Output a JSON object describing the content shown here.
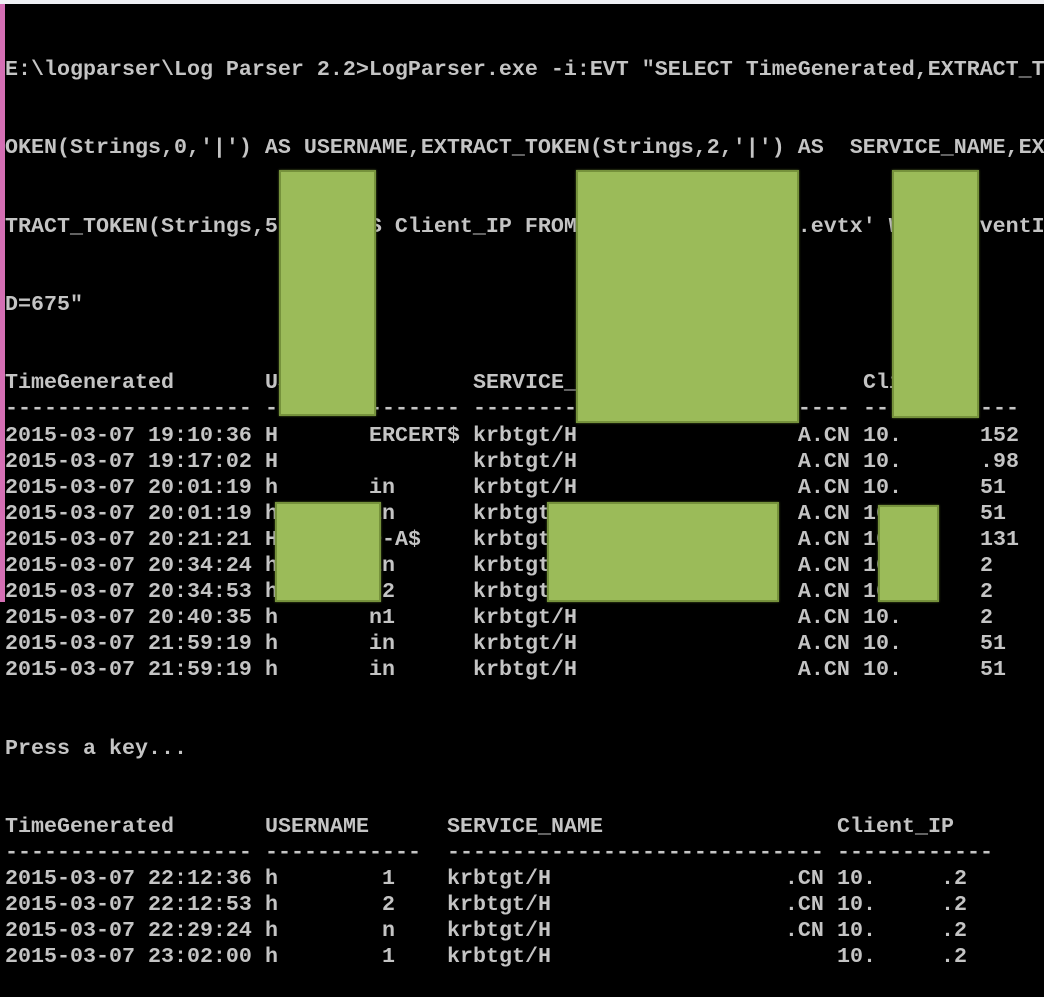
{
  "command": {
    "lines": [
      "E:\\logparser\\Log Parser 2.2>LogParser.exe -i:EVT \"SELECT TimeGenerated,EXTRACT_T",
      "OKEN(Strings,0,'|') AS USERNAME,EXTRACT_TOKEN(Strings,2,'|') AS  SERVICE_NAME,EX",
      "TRACT_TOKEN(Strings,5,'|') AS Client_IP FROM 'e:\\logparser\\xx.evtx' WHERE EventI",
      "D=675\""
    ]
  },
  "table1": {
    "headers": [
      "TimeGenerated",
      "USERNAME",
      "SERVICE_NAME",
      "Client_IP"
    ],
    "rows": [
      [
        "2015-03-07 19:10:36",
        "H       ERCERT$",
        "krbtgt/H                 A.CN",
        "10.      152"
      ],
      [
        "2015-03-07 19:17:02",
        "H",
        "krbtgt/H                 A.CN",
        "10.      .98"
      ],
      [
        "2015-03-07 20:01:19",
        "h       in",
        "krbtgt/H                 A.CN",
        "10.      51"
      ],
      [
        "2015-03-07 20:01:19",
        "h       in",
        "krbtgt/H                 A.CN",
        "10.      51"
      ],
      [
        "2015-03-07 20:21:21",
        "H       D-A$",
        "krbtgt/H                 A.CN",
        "10.      131"
      ],
      [
        "2015-03-07 20:34:24",
        "h       in",
        "krbtgt/H                 A.CN",
        "10.      2"
      ],
      [
        "2015-03-07 20:34:53",
        "h       n2",
        "krbtgt/H                 A.CN",
        "10.      2"
      ],
      [
        "2015-03-07 20:40:35",
        "h       n1",
        "krbtgt/H                 A.CN",
        "10.      2"
      ],
      [
        "2015-03-07 21:59:19",
        "h       in",
        "krbtgt/H                 A.CN",
        "10.      51"
      ],
      [
        "2015-03-07 21:59:19",
        "h       in",
        "krbtgt/H                 A.CN",
        "10.      51"
      ]
    ]
  },
  "prompt": "Press a key...",
  "table2": {
    "headers": [
      "TimeGenerated",
      "USERNAME",
      "SERVICE_NAME",
      "Client_IP"
    ],
    "rows": [
      [
        "2015-03-07 22:12:36",
        "h        1",
        "krbtgt/H                  .CN",
        "10.     .2"
      ],
      [
        "2015-03-07 22:12:53",
        "h        2",
        "krbtgt/H                  .CN",
        "10.     .2"
      ],
      [
        "2015-03-07 22:29:24",
        "h        n",
        "krbtgt/H                  .CN",
        "10.     .2"
      ],
      [
        "2015-03-07 23:02:00",
        "h        1",
        "krbtgt/H",
        "10.     .2"
      ]
    ]
  },
  "colors": {
    "background": "#000000",
    "text": "#c4c4c4",
    "redaction": "#9bbb59",
    "window_edge": "#d46fb4"
  }
}
